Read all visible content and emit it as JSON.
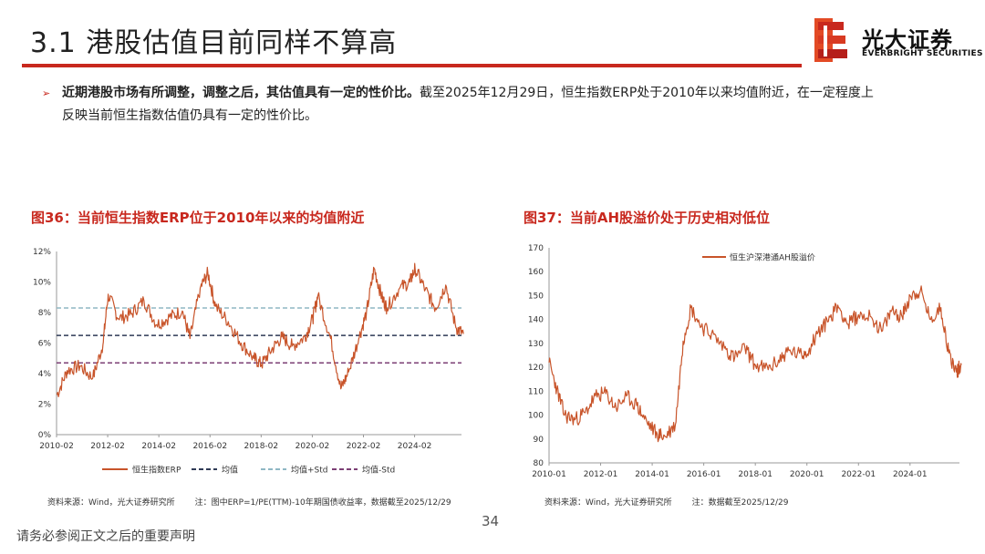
{
  "header": {
    "title": "3.1 港股估值目前同样不算高"
  },
  "logo": {
    "name_cn": "光大证券",
    "name_en": "EVERBRIGHT SECURITIES"
  },
  "bullet": {
    "bold": "近期港股市场有所调整，调整之后，其估值具有一定的性价比。",
    "line1_rest": "截至2025年12月29日，恒生指数ERP处于2010年以来均值附近，在一定程度上",
    "line2": "反映当前恒生指数估值仍具有一定的性价比。"
  },
  "figures": {
    "fig36": {
      "caption": "图36：当前恒生指数ERP位于2010年以来的均值附近",
      "source": "资料来源：Wind，光大证券研究所",
      "note": "注：图中ERP=1/PE(TTM)-10年期国债收益率，数据截至2025/12/29"
    },
    "fig37": {
      "caption": "图37：当前AH股溢价处于历史相对低位",
      "source": "资料来源：Wind，光大证券研究所",
      "note": "注：数据截至2025/12/29"
    }
  },
  "footer": {
    "page": "34",
    "disclaimer": "请务必参阅正文之后的重要声明"
  },
  "colors": {
    "accent": "#c8281e",
    "series": "#c8542a",
    "mean": "#2f3a56",
    "plus_std": "#8fb7c4",
    "minus_std": "#7b3f75"
  },
  "chart_data": [
    {
      "type": "line",
      "title": "图36：当前恒生指数ERP位于2010年以来的均值附近",
      "xlabel": "",
      "ylabel": "",
      "x_tick_labels": [
        "2010-02",
        "2012-02",
        "2014-02",
        "2016-02",
        "2018-02",
        "2020-02",
        "2022-02",
        "2024-02"
      ],
      "x_range": [
        "2010-02",
        "2025-12"
      ],
      "y_tick_labels": [
        "0%",
        "2%",
        "4%",
        "6%",
        "8%",
        "10%",
        "12%"
      ],
      "ylim": [
        0,
        12
      ],
      "series": [
        {
          "name": "恒生指数ERP",
          "x": [
            2010.1,
            2010.5,
            2011.0,
            2011.5,
            2011.9,
            2012.1,
            2012.5,
            2013.0,
            2013.5,
            2014.0,
            2014.5,
            2015.0,
            2015.3,
            2015.7,
            2016.0,
            2016.3,
            2016.8,
            2017.3,
            2017.8,
            2018.1,
            2018.5,
            2018.9,
            2019.3,
            2019.8,
            2020.1,
            2020.3,
            2020.8,
            2021.2,
            2021.5,
            2021.9,
            2022.2,
            2022.5,
            2022.8,
            2023.0,
            2023.5,
            2023.9,
            2024.1,
            2024.5,
            2024.9,
            2025.3,
            2025.7,
            2025.99
          ],
          "values": [
            2.6,
            4.2,
            4.5,
            3.7,
            5.9,
            9.2,
            7.6,
            7.9,
            8.8,
            7.2,
            7.7,
            8.1,
            6.3,
            9.6,
            10.6,
            8.4,
            7.4,
            6.0,
            5.0,
            4.6,
            5.6,
            6.4,
            5.8,
            6.4,
            7.6,
            9.1,
            6.3,
            3.0,
            4.1,
            6.3,
            8.0,
            10.9,
            9.0,
            8.3,
            9.6,
            10.0,
            10.9,
            9.5,
            8.3,
            9.8,
            7.0,
            6.6
          ]
        },
        {
          "name": "均值",
          "style": "dashed",
          "values": [
            6.5
          ]
        },
        {
          "name": "均值+Std",
          "style": "dashed",
          "values": [
            8.3
          ]
        },
        {
          "name": "均值-Std",
          "style": "dashed",
          "values": [
            4.7
          ]
        }
      ],
      "legend": "bottom"
    },
    {
      "type": "line",
      "title": "图37：当前AH股溢价处于历史相对低位",
      "xlabel": "",
      "ylabel": "",
      "x_tick_labels": [
        "2010-01",
        "2012-01",
        "2014-01",
        "2016-01",
        "2018-01",
        "2020-01",
        "2022-01",
        "2024-01"
      ],
      "x_range": [
        "2010-01",
        "2025-12"
      ],
      "y_tick_labels": [
        "80",
        "90",
        "100",
        "110",
        "120",
        "130",
        "140",
        "150",
        "160",
        "170"
      ],
      "ylim": [
        80,
        170
      ],
      "series": [
        {
          "name": "恒生沪深港通AH股溢价",
          "x": [
            2010.0,
            2010.3,
            2010.6,
            2011.0,
            2011.4,
            2011.8,
            2012.2,
            2012.6,
            2013.0,
            2013.4,
            2013.8,
            2014.2,
            2014.5,
            2014.9,
            2015.2,
            2015.5,
            2015.9,
            2016.3,
            2016.8,
            2017.2,
            2017.6,
            2018.0,
            2018.5,
            2018.9,
            2019.3,
            2019.8,
            2020.1,
            2020.4,
            2020.8,
            2021.2,
            2021.6,
            2022.0,
            2022.5,
            2022.9,
            2023.3,
            2023.7,
            2024.0,
            2024.4,
            2024.8,
            2025.2,
            2025.5,
            2025.8,
            2025.99
          ],
          "values": [
            122,
            111,
            100,
            98,
            101,
            108,
            109,
            103,
            108,
            104,
            97,
            92,
            91,
            96,
            131,
            145,
            137,
            134,
            128,
            124,
            128,
            121,
            119,
            123,
            127,
            125,
            128,
            134,
            139,
            146,
            138,
            142,
            141,
            135,
            144,
            141,
            150,
            152,
            140,
            145,
            126,
            118,
            121
          ]
        }
      ],
      "legend": "top-left"
    }
  ]
}
